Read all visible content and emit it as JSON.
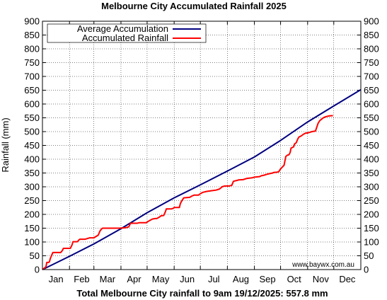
{
  "chart_data": {
    "type": "line",
    "title": "Melbourne City Accumulated Rainfall 2025",
    "ylabel": "Rainfall (mm)",
    "footer": "Total Melbourne City rainfall to 9am 19/12/2025: 557.8 mm",
    "watermark": "www.baywx.com.au",
    "ylim": [
      0,
      900
    ],
    "yticks": [
      0,
      50,
      100,
      150,
      200,
      250,
      300,
      350,
      400,
      450,
      500,
      550,
      600,
      650,
      700,
      750,
      800,
      850,
      900
    ],
    "xlim": [
      1,
      366
    ],
    "month_labels": [
      "Jan",
      "Feb",
      "Mar",
      "Apr",
      "May",
      "Jun",
      "Jul",
      "Aug",
      "Sep",
      "Oct",
      "Nov",
      "Dec"
    ],
    "month_starts": [
      1,
      32,
      60,
      91,
      121,
      152,
      182,
      213,
      244,
      274,
      305,
      335,
      366
    ],
    "grid": true,
    "legend": "top-left",
    "series": [
      {
        "name": "Average Accumulation",
        "color": "#00007f",
        "x": [
          1,
          32,
          60,
          91,
          121,
          152,
          182,
          213,
          244,
          274,
          305,
          335,
          366
        ],
        "y": [
          0,
          48,
          93,
          148,
          206,
          260,
          307,
          357,
          408,
          468,
          535,
          593,
          652
        ]
      },
      {
        "name": "Accumulated Rainfall",
        "color": "#ff0000",
        "x": [
          1,
          3,
          5,
          6,
          8,
          9,
          10,
          12,
          13,
          22,
          24,
          25,
          33,
          35,
          36,
          41,
          43,
          44,
          50,
          53,
          55,
          60,
          65,
          67,
          69,
          70,
          80,
          90,
          97,
          100,
          102,
          110,
          112,
          120,
          124,
          127,
          130,
          132,
          135,
          137,
          140,
          142,
          143,
          149,
          151,
          152,
          158,
          159,
          160,
          162,
          163,
          170,
          172,
          175,
          180,
          182,
          185,
          189,
          193,
          195,
          200,
          204,
          207,
          210,
          215,
          218,
          220,
          224,
          226,
          231,
          235,
          240,
          242,
          244,
          250,
          252,
          255,
          258,
          262,
          265,
          266,
          270,
          272,
          274,
          278,
          280,
          282,
          283,
          284,
          285,
          286,
          289,
          290,
          292,
          293,
          294,
          295,
          298,
          300,
          303,
          305,
          308,
          310,
          314,
          317,
          319,
          321,
          323,
          325,
          327,
          330,
          333,
          334
        ],
        "y": [
          0,
          5,
          10,
          26,
          26,
          28,
          40,
          55,
          62,
          62,
          70,
          77,
          77,
          90,
          101,
          101,
          108,
          110,
          110,
          113,
          115,
          115,
          125,
          140,
          148,
          150,
          150,
          150,
          152,
          155,
          168,
          168,
          170,
          170,
          178,
          183,
          185,
          185,
          190,
          195,
          196,
          210,
          220,
          220,
          222,
          225,
          225,
          238,
          245,
          255,
          260,
          262,
          266,
          270,
          270,
          275,
          280,
          283,
          285,
          286,
          288,
          292,
          300,
          303,
          303,
          305,
          320,
          323,
          325,
          326,
          330,
          332,
          333,
          335,
          337,
          340,
          342,
          345,
          348,
          350,
          352,
          353,
          355,
          365,
          378,
          410,
          415,
          415,
          418,
          425,
          440,
          445,
          455,
          460,
          468,
          475,
          480,
          485,
          490,
          495,
          495,
          498,
          500,
          502,
          530,
          540,
          545,
          550,
          553,
          555,
          557,
          557.8,
          557.8
        ]
      }
    ]
  }
}
